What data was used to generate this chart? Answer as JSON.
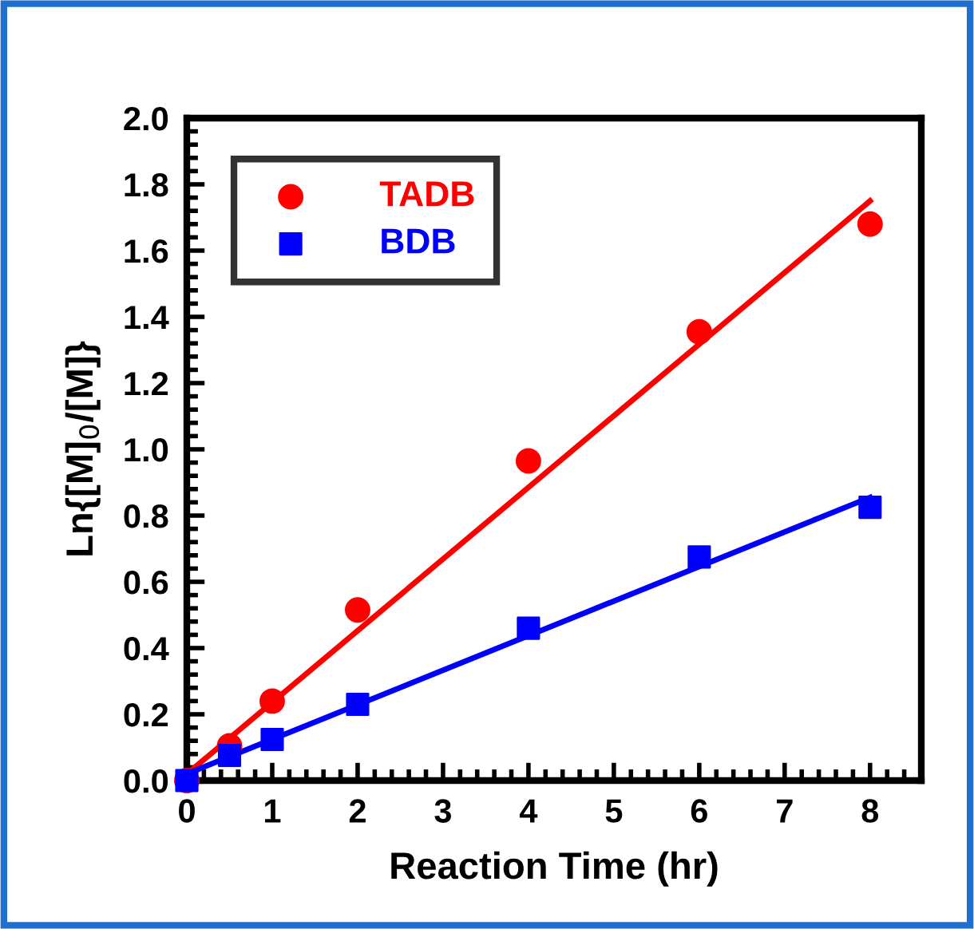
{
  "chart_data": {
    "type": "scatter",
    "xlabel": "Reaction Time (hr)",
    "ylabel": "Ln{[M]$_{0}$/[M]}",
    "xlim": [
      0,
      8.6
    ],
    "ylim": [
      0,
      2.0
    ],
    "xticks": [
      0,
      1,
      2,
      3,
      4,
      5,
      6,
      7,
      8
    ],
    "yticks": [
      {
        "value": 0,
        "label": "0.0"
      },
      {
        "value": 0.2,
        "label": "0.2"
      },
      {
        "value": 0.4,
        "label": "0.4"
      },
      {
        "value": 0.6,
        "label": "0.6"
      },
      {
        "value": 0.8,
        "label": "0.8"
      },
      {
        "value": 1.0,
        "label": "1.0"
      },
      {
        "value": 1.2,
        "label": "1.2"
      },
      {
        "value": 1.4,
        "label": "1.4"
      },
      {
        "value": 1.6,
        "label": "1.6"
      },
      {
        "value": 1.8,
        "label": "1.8"
      },
      {
        "value": 2.0,
        "label": "2.0"
      }
    ],
    "grid": false,
    "legend": "top left",
    "series": [
      {
        "name": "TADB",
        "marker": "circle",
        "color": "#ff0000",
        "x": [
          0,
          0.5,
          1,
          2,
          4,
          6,
          8
        ],
        "values": [
          0,
          0.105,
          0.24,
          0.515,
          0.965,
          1.355,
          1.68
        ]
      },
      {
        "name": "BDB",
        "marker": "square",
        "color": "#0000ff",
        "x": [
          0,
          0.5,
          1,
          2,
          4,
          6,
          8
        ],
        "values": [
          0,
          0.076,
          0.124,
          0.23,
          0.46,
          0.675,
          0.825
        ]
      },
      {
        "type": "line",
        "line_style": "solid",
        "color": "#ff0000",
        "x": [
          0,
          8
        ],
        "values": [
          0.02,
          1.75
        ]
      },
      {
        "type": "line",
        "line_style": "solid",
        "color": "#0000ff",
        "x": [
          0,
          8
        ],
        "values": [
          0.02,
          0.855
        ]
      }
    ]
  }
}
